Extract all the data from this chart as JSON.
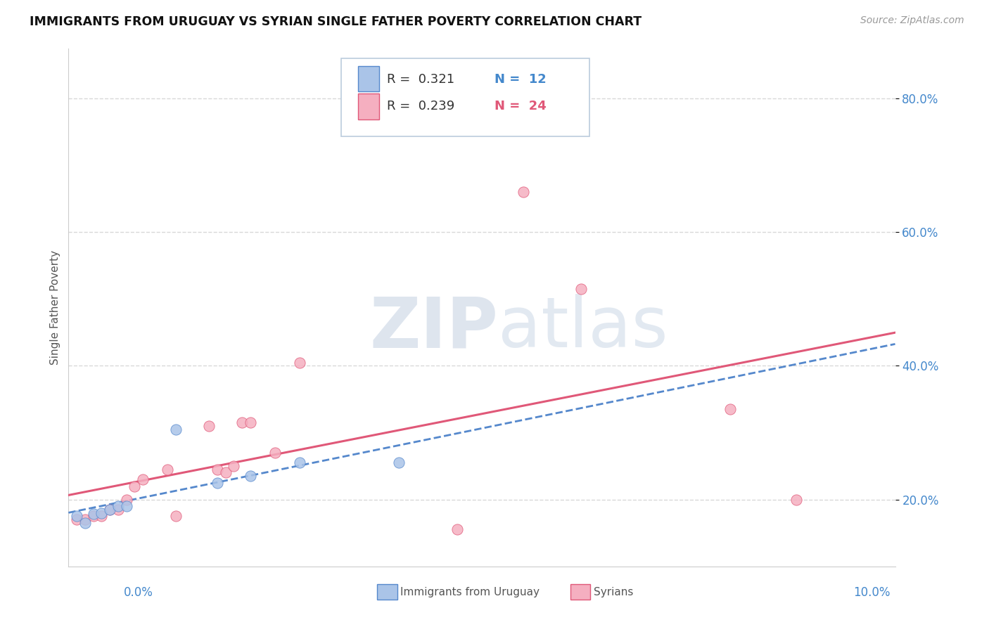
{
  "title": "IMMIGRANTS FROM URUGUAY VS SYRIAN SINGLE FATHER POVERTY CORRELATION CHART",
  "source": "Source: ZipAtlas.com",
  "ylabel": "Single Father Poverty",
  "xlim": [
    0.0,
    0.1
  ],
  "ylim": [
    0.1,
    0.875
  ],
  "watermark_zip": "ZIP",
  "watermark_atlas": "atlas",
  "legend_r1": "R =  0.321",
  "legend_n1": "N =  12",
  "legend_r2": "R =  0.239",
  "legend_n2": "N =  24",
  "label1": "Immigrants from Uruguay",
  "label2": "Syrians",
  "color1": "#aac4e8",
  "color2": "#f5afc0",
  "trendline_color1": "#5588cc",
  "trendline_color2": "#e05878",
  "uruguay_x": [
    0.001,
    0.002,
    0.003,
    0.004,
    0.005,
    0.006,
    0.007,
    0.013,
    0.018,
    0.022,
    0.028,
    0.04
  ],
  "uruguay_y": [
    0.175,
    0.165,
    0.178,
    0.18,
    0.185,
    0.19,
    0.19,
    0.305,
    0.225,
    0.235,
    0.255,
    0.255
  ],
  "syrians_x": [
    0.001,
    0.002,
    0.003,
    0.004,
    0.005,
    0.006,
    0.007,
    0.008,
    0.009,
    0.012,
    0.013,
    0.017,
    0.018,
    0.019,
    0.02,
    0.021,
    0.022,
    0.025,
    0.028,
    0.047,
    0.055,
    0.062,
    0.08,
    0.088
  ],
  "syrians_y": [
    0.17,
    0.17,
    0.175,
    0.175,
    0.185,
    0.185,
    0.2,
    0.22,
    0.23,
    0.245,
    0.175,
    0.31,
    0.245,
    0.24,
    0.25,
    0.315,
    0.315,
    0.27,
    0.405,
    0.155,
    0.66,
    0.515,
    0.335,
    0.2
  ],
  "background_color": "#ffffff",
  "grid_color": "#d8d8d8",
  "y_ticks": [
    0.2,
    0.4,
    0.6,
    0.8
  ],
  "y_tick_labels": [
    "20.0%",
    "40.0%",
    "60.0%",
    "80.0%"
  ],
  "x_tick_left_label": "0.0%",
  "x_tick_right_label": "10.0%"
}
